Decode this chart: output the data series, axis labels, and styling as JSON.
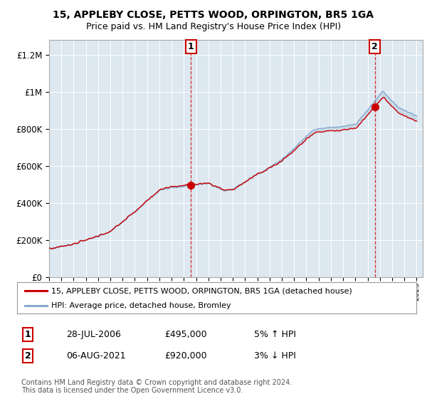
{
  "title_line1": "15, APPLEBY CLOSE, PETTS WOOD, ORPINGTON, BR5 1GA",
  "title_line2": "Price paid vs. HM Land Registry's House Price Index (HPI)",
  "ylabel_ticks": [
    "£0",
    "£200K",
    "£400K",
    "£600K",
    "£800K",
    "£1M",
    "£1.2M"
  ],
  "ytick_values": [
    0,
    200000,
    400000,
    600000,
    800000,
    1000000,
    1200000
  ],
  "ylim": [
    0,
    1280000
  ],
  "legend_label_red": "15, APPLEBY CLOSE, PETTS WOOD, ORPINGTON, BR5 1GA (detached house)",
  "legend_label_blue": "HPI: Average price, detached house, Bromley",
  "annotation1_date": "28-JUL-2006",
  "annotation1_price": "£495,000",
  "annotation1_hpi": "5% ↑ HPI",
  "annotation1_year": 2006.58,
  "annotation1_value": 495000,
  "annotation2_date": "06-AUG-2021",
  "annotation2_price": "£920,000",
  "annotation2_hpi": "3% ↓ HPI",
  "annotation2_year": 2021.6,
  "annotation2_value": 920000,
  "copyright_text": "Contains HM Land Registry data © Crown copyright and database right 2024.\nThis data is licensed under the Open Government Licence v3.0.",
  "line_red": "#cc0000",
  "line_blue": "#88aacc",
  "bg_color": "#ffffff",
  "plot_bg": "#dde8f0",
  "grid_color": "#ffffff",
  "annotation_box_color": "#cc0000",
  "fill_color": "#c8daea"
}
